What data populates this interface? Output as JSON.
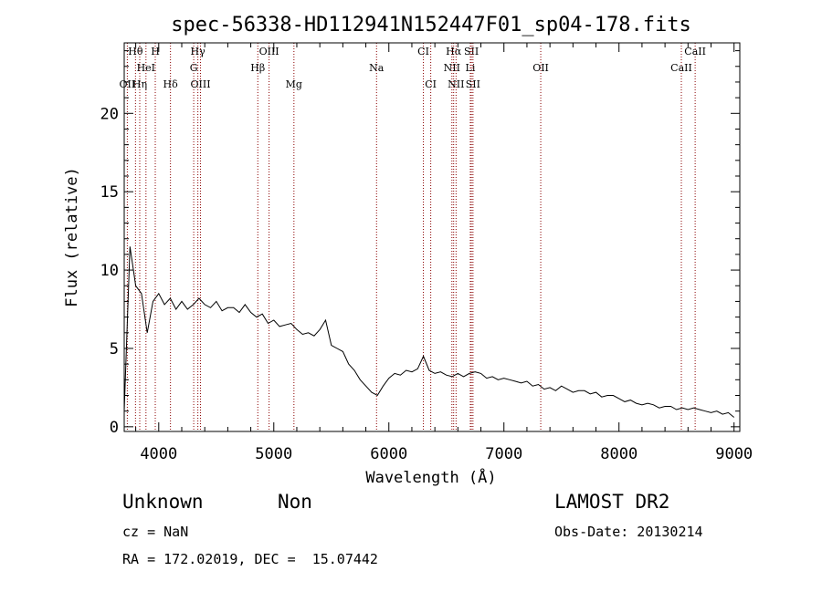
{
  "chart_data": {
    "type": "line",
    "title": "spec-56338-HD112941N152447F01_sp04-178.fits",
    "xlabel": "Wavelength (Å)",
    "ylabel": "Flux (relative)",
    "xlim": [
      3700,
      9050
    ],
    "ylim": [
      -0.3,
      24.5
    ],
    "xticks": [
      4000,
      5000,
      6000,
      7000,
      8000,
      9000
    ],
    "yticks": [
      0,
      5,
      10,
      15,
      20
    ],
    "grid": false,
    "series_color": "#000000",
    "line_marker_color": "#8b0000",
    "spectral_lines": [
      {
        "name": "Hθ",
        "wavelength": 3798,
        "row": 0
      },
      {
        "name": "H",
        "wavelength": 3970,
        "row": 0
      },
      {
        "name": "Hγ",
        "wavelength": 4340,
        "row": 0
      },
      {
        "name": "OIII",
        "wavelength": 4959,
        "row": 0
      },
      {
        "name": "CI",
        "wavelength": 6300,
        "row": 0
      },
      {
        "name": "Hα",
        "wavelength": 6563,
        "row": 0
      },
      {
        "name": "SII",
        "wavelength": 6717,
        "row": 0
      },
      {
        "name": "CaII",
        "wavelength": 8662,
        "row": 0
      },
      {
        "name": "HeI",
        "wavelength": 3889,
        "row": 1
      },
      {
        "name": "G",
        "wavelength": 4304,
        "row": 1
      },
      {
        "name": "Hβ",
        "wavelength": 4861,
        "row": 1
      },
      {
        "name": "Na",
        "wavelength": 5893,
        "row": 1
      },
      {
        "name": "NII",
        "wavelength": 6548,
        "row": 1
      },
      {
        "name": "Li",
        "wavelength": 6708,
        "row": 1
      },
      {
        "name": "OII",
        "wavelength": 7320,
        "row": 1
      },
      {
        "name": "CaII",
        "wavelength": 8542,
        "row": 1
      },
      {
        "name": "OII",
        "wavelength": 3727,
        "row": 2
      },
      {
        "name": "Hη",
        "wavelength": 3835,
        "row": 2
      },
      {
        "name": "Hδ",
        "wavelength": 4102,
        "row": 2
      },
      {
        "name": "OIII",
        "wavelength": 4363,
        "row": 2
      },
      {
        "name": "Mg",
        "wavelength": 5175,
        "row": 2
      },
      {
        "name": "CI",
        "wavelength": 6364,
        "row": 2
      },
      {
        "name": "NII",
        "wavelength": 6584,
        "row": 2
      },
      {
        "name": "SII",
        "wavelength": 6731,
        "row": 2
      }
    ],
    "x": [
      3700,
      3750,
      3800,
      3850,
      3900,
      3950,
      4000,
      4050,
      4100,
      4150,
      4200,
      4250,
      4300,
      4350,
      4400,
      4450,
      4500,
      4550,
      4600,
      4650,
      4700,
      4750,
      4800,
      4850,
      4900,
      4950,
      5000,
      5050,
      5100,
      5150,
      5200,
      5250,
      5300,
      5350,
      5400,
      5450,
      5500,
      5550,
      5600,
      5650,
      5700,
      5750,
      5800,
      5850,
      5900,
      5950,
      6000,
      6050,
      6100,
      6150,
      6200,
      6250,
      6300,
      6350,
      6400,
      6450,
      6500,
      6550,
      6600,
      6650,
      6700,
      6750,
      6800,
      6850,
      6900,
      6950,
      7000,
      7050,
      7100,
      7150,
      7200,
      7250,
      7300,
      7350,
      7400,
      7450,
      7500,
      7550,
      7600,
      7650,
      7700,
      7750,
      7800,
      7850,
      7900,
      7950,
      8000,
      8050,
      8100,
      8150,
      8200,
      8250,
      8300,
      8350,
      8400,
      8450,
      8500,
      8550,
      8600,
      8650,
      8700,
      8750,
      8800,
      8850,
      8900,
      8950,
      9000
    ],
    "values": [
      1.0,
      11.5,
      9.0,
      8.5,
      6.0,
      8.0,
      8.5,
      7.8,
      8.2,
      7.5,
      8.0,
      7.5,
      7.8,
      8.2,
      7.8,
      7.6,
      8.0,
      7.4,
      7.6,
      7.6,
      7.3,
      7.8,
      7.3,
      7.0,
      7.2,
      6.6,
      6.8,
      6.4,
      6.5,
      6.6,
      6.2,
      5.9,
      6.0,
      5.8,
      6.2,
      6.8,
      5.2,
      5.0,
      4.8,
      4.0,
      3.6,
      3.0,
      2.6,
      2.2,
      2.0,
      2.6,
      3.1,
      3.4,
      3.3,
      3.6,
      3.5,
      3.7,
      4.5,
      3.6,
      3.4,
      3.5,
      3.3,
      3.2,
      3.4,
      3.2,
      3.4,
      3.5,
      3.4,
      3.1,
      3.2,
      3.0,
      3.1,
      3.0,
      2.9,
      2.8,
      2.9,
      2.6,
      2.7,
      2.4,
      2.5,
      2.3,
      2.6,
      2.4,
      2.2,
      2.3,
      2.3,
      2.1,
      2.2,
      1.9,
      2.0,
      2.0,
      1.8,
      1.6,
      1.7,
      1.5,
      1.4,
      1.5,
      1.4,
      1.2,
      1.3,
      1.3,
      1.1,
      1.2,
      1.1,
      1.2,
      1.1,
      1.0,
      0.9,
      1.0,
      0.8,
      0.9,
      0.6
    ]
  },
  "info": {
    "class": "Unknown",
    "subclass": "Non",
    "survey": "LAMOST DR2",
    "cz": "cz = NaN",
    "obs_date": "Obs-Date: 20130214",
    "coords": "RA = 172.02019, DEC =  15.07442"
  }
}
